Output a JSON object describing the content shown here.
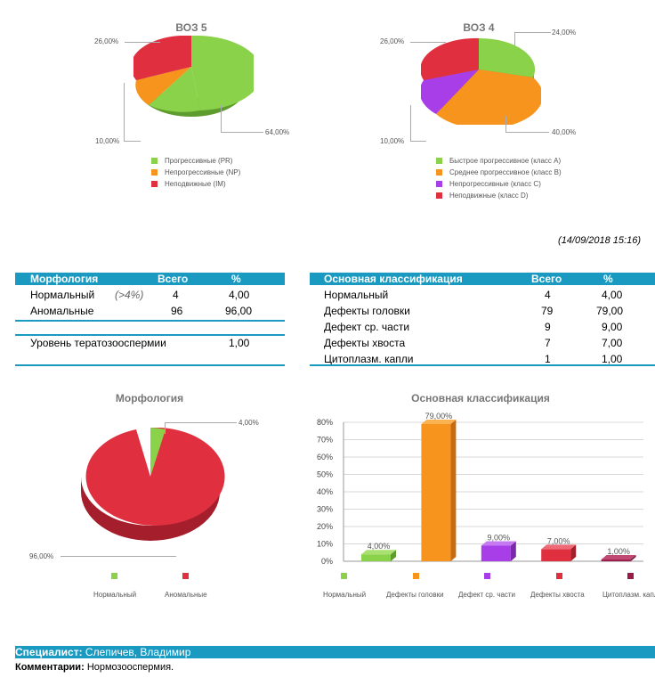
{
  "colors": {
    "accent": "#1a9ac0",
    "green": "#8ad24a",
    "orange": "#f7941d",
    "red": "#e03040",
    "purple": "#a83ee8",
    "maroon": "#9a1a4a"
  },
  "who5": {
    "title": "ВОЗ 5",
    "labels": [
      "26,00%",
      "10,00%",
      "64,00%"
    ],
    "legend": [
      "Прогрессивные (PR)",
      "Непрогрессивные (NP)",
      "Неподвижные (IM)"
    ]
  },
  "who4": {
    "title": "ВОЗ 4",
    "labels": [
      "26,00%",
      "24,00%",
      "10,00%",
      "40,00%"
    ],
    "legend": [
      "Быстрое прогрессивное (класс A)",
      "Среднее прогрессивное (класс B)",
      "Непрогрессивные (класс C)",
      "Неподвижные (класс D)"
    ]
  },
  "timestamp": "(14/09/2018  15:16)",
  "morph_table": {
    "headers": [
      "Морфология",
      "Всего",
      "%"
    ],
    "rows": [
      {
        "name": "Нормальный",
        "note": "(>4%)",
        "total": "4",
        "pct": "4,00"
      },
      {
        "name": "Аномальные",
        "total": "96",
        "pct": "96,00"
      }
    ],
    "terato": {
      "label": "Уровень тератозооспермии",
      "value": "1,00"
    }
  },
  "class_table": {
    "headers": [
      "Основная классификация",
      "Всего",
      "%"
    ],
    "rows": [
      {
        "name": "Нормальный",
        "total": "4",
        "pct": "4,00"
      },
      {
        "name": "Дефекты головки",
        "total": "79",
        "pct": "79,00"
      },
      {
        "name": "Дефект ср. части",
        "total": "9",
        "pct": "9,00"
      },
      {
        "name": "Дефекты хвоста",
        "total": "7",
        "pct": "7,00"
      },
      {
        "name": "Цитоплазм. капли",
        "total": "1",
        "pct": "1,00"
      }
    ]
  },
  "morph_pie": {
    "title": "Морфология",
    "labels": [
      "4,00%",
      "96,00%"
    ],
    "legend": [
      "Нормальный",
      "Аномальные"
    ]
  },
  "chart_data": [
    {
      "type": "pie",
      "title": "ВОЗ 5",
      "categories": [
        "Прогрессивные (PR)",
        "Непрогрессивные (NP)",
        "Неподвижные (IM)"
      ],
      "values": [
        64,
        10,
        26
      ]
    },
    {
      "type": "pie",
      "title": "ВОЗ 4",
      "categories": [
        "Быстрое прогрессивное (класс A)",
        "Среднее прогрессивное (класс B)",
        "Непрогрессивные (класс C)",
        "Неподвижные (класс D)"
      ],
      "values": [
        24,
        40,
        10,
        26
      ]
    },
    {
      "type": "pie",
      "title": "Морфология",
      "categories": [
        "Нормальный",
        "Аномальные"
      ],
      "values": [
        4,
        96
      ]
    },
    {
      "type": "bar",
      "title": "Основная классификация",
      "categories": [
        "Нормальный",
        "Дефекты головки",
        "Дефект ср. части",
        "Дефекты хвоста",
        "Цитоплазм. капли"
      ],
      "values": [
        4,
        79,
        9,
        7,
        1
      ],
      "data_labels": [
        "4,00%",
        "79,00%",
        "9,00%",
        "7,00%",
        "1,00%"
      ],
      "ylim": [
        0,
        80
      ],
      "yticks": [
        "0%",
        "10%",
        "20%",
        "30%",
        "40%",
        "50%",
        "60%",
        "70%",
        "80%"
      ],
      "legend": [
        "Нормальный",
        "Дефекты головки",
        "Дефект ср. части",
        "Дефекты хвоста",
        "Цитоплазм. капли"
      ]
    }
  ],
  "footer": {
    "specialist_label": "Специалист:",
    "specialist_value": "Слепичев, Владимир",
    "comments_label": "Комментарии:",
    "comments_value": "Нормозооспермия."
  }
}
